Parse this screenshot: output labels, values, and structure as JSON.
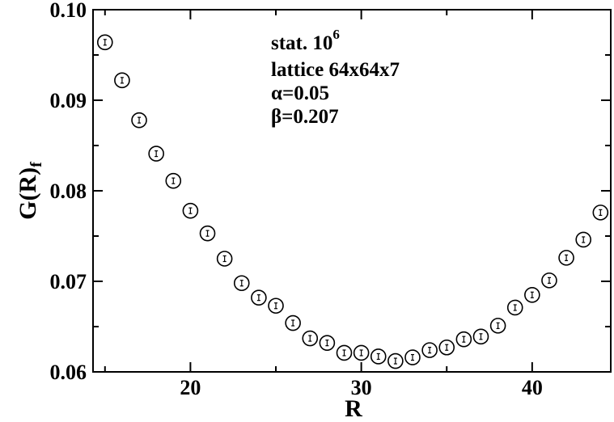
{
  "chart_data": {
    "type": "scatter",
    "xlabel": "R",
    "ylabel": "G(R)",
    "ylabel_subscript": "f",
    "xlim": [
      14.3,
      44.6
    ],
    "ylim": [
      0.06,
      0.1
    ],
    "xticks": [
      20,
      30,
      40
    ],
    "xtick_labels": [
      "20",
      "30",
      "40"
    ],
    "yticks": [
      0.06,
      0.07,
      0.08,
      0.09,
      0.1
    ],
    "ytick_labels": [
      "0.06",
      "0.07",
      "0.08",
      "0.09",
      "0.10"
    ],
    "grid": false,
    "marker": "open-circle-with-errorbar",
    "annotations": [
      {
        "text": "stat. 10",
        "superscript": "6"
      },
      {
        "text": "lattice 64x64x7"
      },
      {
        "text": "α=0.05"
      },
      {
        "text": "β=0.207"
      }
    ],
    "series": [
      {
        "x": [
          15,
          16,
          17,
          18,
          19,
          20,
          21,
          22,
          23,
          24,
          25,
          26,
          27,
          28,
          29,
          30,
          31,
          32,
          33,
          34,
          35,
          36,
          37,
          38,
          39,
          40,
          41,
          42,
          43,
          44
        ],
        "y": [
          0.0964,
          0.0922,
          0.0878,
          0.0841,
          0.0811,
          0.0778,
          0.0753,
          0.0725,
          0.0698,
          0.0682,
          0.0673,
          0.0654,
          0.0637,
          0.0632,
          0.0621,
          0.0621,
          0.0617,
          0.0612,
          0.0616,
          0.0624,
          0.0627,
          0.0636,
          0.0639,
          0.0651,
          0.0671,
          0.0685,
          0.0701,
          0.0726,
          0.0746,
          0.0776
        ]
      }
    ]
  }
}
